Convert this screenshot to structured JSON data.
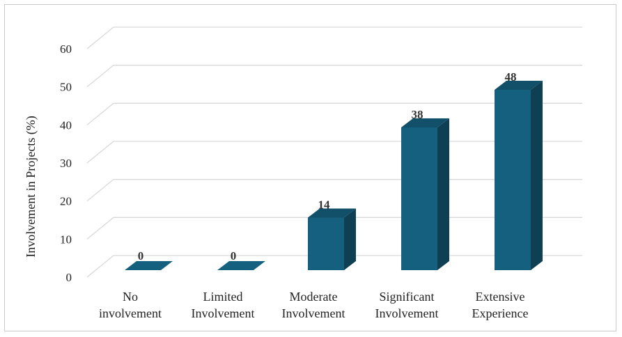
{
  "chart_data": {
    "type": "bar",
    "style": "3d-column",
    "categories": [
      [
        "No",
        "involvement"
      ],
      [
        "Limited",
        "Involvement"
      ],
      [
        "Moderate",
        "Involvement"
      ],
      [
        "Significant",
        "Involvement"
      ],
      [
        "Extensive",
        "Experience"
      ]
    ],
    "values": [
      0,
      0,
      14,
      38,
      48
    ],
    "data_labels": [
      "0",
      "0",
      "14",
      "38",
      "48"
    ],
    "ylabel": "Involvement in Projects (%)",
    "xlabel": "",
    "ylim": [
      0,
      60
    ],
    "yticks": [
      0,
      10,
      20,
      30,
      40,
      50,
      60
    ],
    "grid": true,
    "legend": "none",
    "colors": {
      "front": "#16607f",
      "side": "#0f3f52",
      "top": "#124f69",
      "grid": "#d9d9d9"
    }
  }
}
